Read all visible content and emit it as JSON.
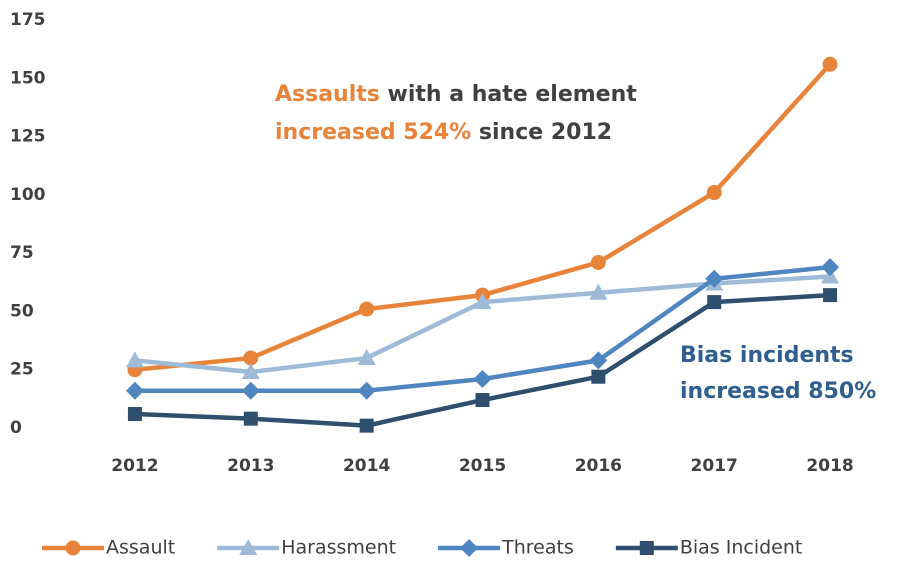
{
  "chart_data": {
    "type": "line",
    "categories": [
      "2012",
      "2013",
      "2014",
      "2015",
      "2016",
      "2017",
      "2018"
    ],
    "series": [
      {
        "name": "Assault",
        "color": "#e8833a",
        "marker": "circle",
        "values": [
          25,
          30,
          51,
          57,
          71,
          101,
          156
        ]
      },
      {
        "name": "Harassment",
        "color": "#9dbbd9",
        "marker": "triangle",
        "values": [
          29,
          24,
          30,
          54,
          58,
          62,
          65
        ]
      },
      {
        "name": "Threats",
        "color": "#4f86bf",
        "marker": "diamond",
        "values": [
          16,
          16,
          16,
          21,
          29,
          64,
          69
        ]
      },
      {
        "name": "Bias Incident",
        "color": "#2f4f6f",
        "marker": "square",
        "values": [
          6,
          4,
          1,
          12,
          22,
          54,
          57
        ]
      }
    ],
    "ylim": [
      0,
      175
    ],
    "yticks": [
      0,
      25,
      50,
      75,
      100,
      125,
      150,
      175
    ],
    "grid": false,
    "legend": "bottom",
    "annotations": [
      {
        "lines": [
          [
            {
              "text": "Assaults",
              "color": "#e8833a"
            },
            {
              "text": " with a hate element",
              "color": "#404040"
            }
          ],
          [
            {
              "text": "increased 524%",
              "color": "#e8833a"
            },
            {
              "text": " since 2012",
              "color": "#404040"
            }
          ]
        ]
      },
      {
        "lines": [
          [
            {
              "text": "Bias incidents",
              "color": "#2f5f8f"
            }
          ],
          [
            {
              "text": "increased 850%",
              "color": "#2f5f8f"
            }
          ]
        ]
      }
    ]
  }
}
